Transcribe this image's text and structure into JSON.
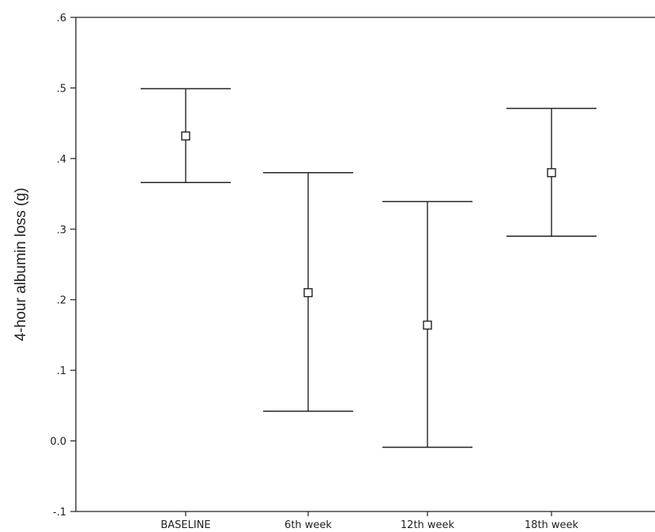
{
  "chart_data": {
    "type": "errorbar",
    "title": "",
    "xlabel": "",
    "ylabel": "4-hour albumin loss (g)",
    "ylim": [
      -0.1,
      0.6
    ],
    "yticks": [
      -0.1,
      0.0,
      0.1,
      0.2,
      0.3,
      0.4,
      0.5,
      0.6
    ],
    "ytick_labels": [
      "-.1",
      "0.0",
      ".1",
      ".2",
      ".3",
      ".4",
      ".5",
      ".6"
    ],
    "categories": [
      "BASELINE",
      "6th week",
      "12th week",
      "18th week"
    ],
    "means": [
      0.432,
      0.21,
      0.164,
      0.38
    ],
    "lower": [
      0.366,
      0.042,
      -0.009,
      0.29
    ],
    "upper": [
      0.499,
      0.38,
      0.339,
      0.471
    ],
    "grid": false,
    "marker": "square-open"
  }
}
